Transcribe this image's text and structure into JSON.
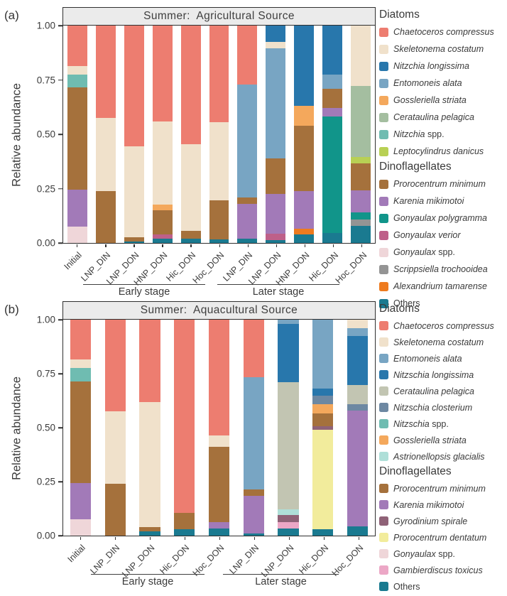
{
  "panel_labels": [
    "(a)",
    "(b)"
  ],
  "chart_data": [
    {
      "type": "bar",
      "stacked": true,
      "title": "Summer:  Agricultural Source",
      "ylabel": "Relative abundance",
      "ylim": [
        0,
        1
      ],
      "grid": false,
      "legend_position": "right",
      "yticks": [
        {
          "v": 1.0,
          "label": "1.00"
        },
        {
          "v": 0.75,
          "label": "0.75"
        },
        {
          "v": 0.5,
          "label": "0.50"
        },
        {
          "v": 0.25,
          "label": "0.25"
        },
        {
          "v": 0.0,
          "label": "0.00"
        }
      ],
      "categories": [
        "Initial",
        "LNP_DIN",
        "LNP_DON",
        "HNP_DON",
        "Hic_DON",
        "Hoc_DON",
        "LNP_DIN",
        "LNP_DON",
        "HNP_DON",
        "Hic_DON",
        "Hoc_DON"
      ],
      "stage_groups": [
        {
          "label": "Early stage",
          "categories": [
            "LNP_DIN",
            "LNP_DON",
            "HNP_DON",
            "Hic_DON",
            "Hoc_DON"
          ]
        },
        {
          "label": "Later stage",
          "categories": [
            "LNP_DIN",
            "LNP_DON",
            "HNP_DON",
            "Hic_DON",
            "Hoc_DON"
          ]
        }
      ],
      "colors": {
        "Chaetoceros compressus": "#ED7D70",
        "Skeletonema costatum": "#F0E1CB",
        "Nitzchia longissima": "#2877AC",
        "Entomoneis alata": "#78A5C3",
        "Gossleriella striata": "#F4A85C",
        "Cerataulina pelagica": "#A4BEA0",
        "Nitzchia spp.": "#6FBCB1",
        "Leptocylindrus danicus": "#B8D054",
        "Prorocentrum minimum": "#A5713C",
        "Karenia mikimotoi": "#A27AB8",
        "Gonyaulax polygramma": "#11958A",
        "Gonyaulax verior": "#BE6089",
        "Gonyaulax spp.": "#EFD6D9",
        "Scrippsiella trochooidea": "#949494",
        "Alexandrium tamarense": "#EE7B1F",
        "Others": "#1A7A90"
      },
      "legend": {
        "sections": [
          {
            "header": "Diatoms",
            "items": [
              "Chaetoceros compressus",
              "Skeletonema costatum",
              "Nitzchia longissima",
              "Entomoneis alata",
              "Gossleriella striata",
              "Cerataulina pelagica",
              "Nitzchia spp.",
              "Leptocylindrus danicus"
            ]
          },
          {
            "header": "Dinoflagellates",
            "items": [
              "Prorocentrum minimum",
              "Karenia mikimotoi",
              "Gonyaulax polygramma",
              "Gonyaulax verior",
              "Gonyaulax spp.",
              "Scrippsiella trochooidea",
              "Alexandrium tamarense",
              "Others"
            ]
          }
        ]
      },
      "bars": [
        {
          "category": "Initial",
          "segments": [
            {
              "species": "Chaetoceros compressus",
              "value": 0.185
            },
            {
              "species": "Skeletonema costatum",
              "value": 0.04
            },
            {
              "species": "Nitzchia spp.",
              "value": 0.06
            },
            {
              "species": "Prorocentrum minimum",
              "value": 0.47
            },
            {
              "species": "Karenia mikimotoi",
              "value": 0.17
            },
            {
              "species": "Gonyaulax spp.",
              "value": 0.075
            }
          ]
        },
        {
          "category": "LNP_DIN",
          "segments": [
            {
              "species": "Chaetoceros compressus",
              "value": 0.425
            },
            {
              "species": "Skeletonema costatum",
              "value": 0.335
            },
            {
              "species": "Prorocentrum minimum",
              "value": 0.24
            }
          ]
        },
        {
          "category": "LNP_DON",
          "segments": [
            {
              "species": "Chaetoceros compressus",
              "value": 0.555
            },
            {
              "species": "Skeletonema costatum",
              "value": 0.42
            },
            {
              "species": "Prorocentrum minimum",
              "value": 0.018
            },
            {
              "species": "Others",
              "value": 0.007
            }
          ]
        },
        {
          "category": "HNP_DON",
          "segments": [
            {
              "species": "Chaetoceros compressus",
              "value": 0.44
            },
            {
              "species": "Skeletonema costatum",
              "value": 0.385
            },
            {
              "species": "Gossleriella striata",
              "value": 0.025
            },
            {
              "species": "Prorocentrum minimum",
              "value": 0.11
            },
            {
              "species": "Gonyaulax verior",
              "value": 0.022
            },
            {
              "species": "Others",
              "value": 0.018
            }
          ]
        },
        {
          "category": "Hic_DON",
          "segments": [
            {
              "species": "Chaetoceros compressus",
              "value": 0.545
            },
            {
              "species": "Skeletonema costatum",
              "value": 0.4
            },
            {
              "species": "Prorocentrum minimum",
              "value": 0.035
            },
            {
              "species": "Others",
              "value": 0.02
            }
          ]
        },
        {
          "category": "Hoc_DON",
          "segments": [
            {
              "species": "Chaetoceros compressus",
              "value": 0.445
            },
            {
              "species": "Skeletonema costatum",
              "value": 0.36
            },
            {
              "species": "Prorocentrum minimum",
              "value": 0.179
            },
            {
              "species": "Others",
              "value": 0.016
            }
          ]
        },
        {
          "category": "LNP_DIN",
          "segments": [
            {
              "species": "Chaetoceros compressus",
              "value": 0.27
            },
            {
              "species": "Entomoneis alata",
              "value": 0.52
            },
            {
              "species": "Prorocentrum minimum",
              "value": 0.031
            },
            {
              "species": "Karenia mikimotoi",
              "value": 0.161
            },
            {
              "species": "Others",
              "value": 0.018
            }
          ]
        },
        {
          "category": "LNP_DON",
          "segments": [
            {
              "species": "Nitzchia longissima",
              "value": 0.074
            },
            {
              "species": "Skeletonema costatum",
              "value": 0.029
            },
            {
              "species": "Entomoneis alata",
              "value": 0.507
            },
            {
              "species": "Prorocentrum minimum",
              "value": 0.163
            },
            {
              "species": "Karenia mikimotoi",
              "value": 0.185
            },
            {
              "species": "Gonyaulax verior",
              "value": 0.03
            },
            {
              "species": "Others",
              "value": 0.012
            }
          ]
        },
        {
          "category": "HNP_DON",
          "segments": [
            {
              "species": "Nitzchia longissima",
              "value": 0.368
            },
            {
              "species": "Gossleriella striata",
              "value": 0.092
            },
            {
              "species": "Prorocentrum minimum",
              "value": 0.3
            },
            {
              "species": "Karenia mikimotoi",
              "value": 0.175
            },
            {
              "species": "Alexandrium tamarense",
              "value": 0.025
            },
            {
              "species": "Others",
              "value": 0.04
            }
          ]
        },
        {
          "category": "Hic_DON",
          "segments": [
            {
              "species": "Nitzchia longissima",
              "value": 0.227
            },
            {
              "species": "Entomoneis alata",
              "value": 0.063
            },
            {
              "species": "Prorocentrum minimum",
              "value": 0.09
            },
            {
              "species": "Karenia mikimotoi",
              "value": 0.04
            },
            {
              "species": "Gonyaulax polygramma",
              "value": 0.535
            },
            {
              "species": "Others",
              "value": 0.045
            }
          ]
        },
        {
          "category": "Hoc_DON",
          "segments": [
            {
              "species": "Skeletonema costatum",
              "value": 0.278
            },
            {
              "species": "Cerataulina pelagica",
              "value": 0.325
            },
            {
              "species": "Leptocylindrus danicus",
              "value": 0.03
            },
            {
              "species": "Prorocentrum minimum",
              "value": 0.125
            },
            {
              "species": "Karenia mikimotoi",
              "value": 0.102
            },
            {
              "species": "Gonyaulax polygramma",
              "value": 0.031
            },
            {
              "species": "Scrippsiella trochooidea",
              "value": 0.032
            },
            {
              "species": "Others",
              "value": 0.077
            }
          ]
        }
      ]
    },
    {
      "type": "bar",
      "stacked": true,
      "title": "Summer:  Aquacultural Source",
      "ylabel": "Relative abundance",
      "ylim": [
        0,
        1
      ],
      "grid": false,
      "legend_position": "right",
      "yticks": [
        {
          "v": 1.0,
          "label": "1.00"
        },
        {
          "v": 0.75,
          "label": "0.75"
        },
        {
          "v": 0.5,
          "label": "0.50"
        },
        {
          "v": 0.25,
          "label": "0.25"
        },
        {
          "v": 0.0,
          "label": "0.00"
        }
      ],
      "categories": [
        "Initial",
        "LNP_DIN",
        "LNP_DON",
        "Hic_DON",
        "Hoc_DON",
        "LNP_DIN",
        "LNP_DON",
        "Hic_DON",
        "Hoc_DON"
      ],
      "stage_groups": [
        {
          "label": "Early stage",
          "categories": [
            "LNP_DIN",
            "LNP_DON",
            "Hic_DON",
            "Hoc_DON"
          ]
        },
        {
          "label": "Later stage",
          "categories": [
            "LNP_DIN",
            "LNP_DON",
            "Hic_DON",
            "Hoc_DON"
          ]
        }
      ],
      "colors": {
        "Chaetoceros compressus": "#ED7D70",
        "Skeletonema costatum": "#F0E1CB",
        "Entomoneis alata": "#78A5C3",
        "Nitzschia longissima": "#2877AC",
        "Cerataulina pelagica": "#C2C5B2",
        "Nitzschia closterium": "#6D88A2",
        "Nitzschia spp.": "#6FBCB1",
        "Gossleriella striata": "#F4A85C",
        "Astrionellopsis glacialis": "#AFDFD8",
        "Prorocentrum minimum": "#A5713C",
        "Karenia mikimotoi": "#A27AB8",
        "Gyrodinium spirale": "#8F6277",
        "Prorocentrum dentatum": "#F2EC9C",
        "Gonyaulax spp.": "#EFD6D9",
        "Gambierdiscus toxicus": "#ECA7C6",
        "Others": "#1A7A90"
      },
      "legend": {
        "sections": [
          {
            "header": "Diatoms",
            "items": [
              "Chaetoceros compressus",
              "Skeletonema costatum",
              "Entomoneis alata",
              "Nitzschia longissima",
              "Cerataulina pelagica",
              "Nitzschia closterium",
              "Nitzschia spp.",
              "Gossleriella striata",
              "Astrionellopsis glacialis"
            ]
          },
          {
            "header": "Dinoflagellates",
            "items": [
              "Prorocentrum minimum",
              "Karenia mikimotoi",
              "Gyrodinium spirale",
              "Prorocentrum dentatum",
              "Gonyaulax spp.",
              "Gambierdiscus toxicus",
              "Others"
            ]
          }
        ]
      },
      "bars": [
        {
          "category": "Initial",
          "segments": [
            {
              "species": "Chaetoceros compressus",
              "value": 0.185
            },
            {
              "species": "Skeletonema costatum",
              "value": 0.04
            },
            {
              "species": "Nitzschia spp.",
              "value": 0.06
            },
            {
              "species": "Prorocentrum minimum",
              "value": 0.47
            },
            {
              "species": "Karenia mikimotoi",
              "value": 0.17
            },
            {
              "species": "Gonyaulax spp.",
              "value": 0.075
            }
          ]
        },
        {
          "category": "LNP_DIN",
          "segments": [
            {
              "species": "Chaetoceros compressus",
              "value": 0.425
            },
            {
              "species": "Skeletonema costatum",
              "value": 0.335
            },
            {
              "species": "Prorocentrum minimum",
              "value": 0.24
            }
          ]
        },
        {
          "category": "LNP_DON",
          "segments": [
            {
              "species": "Chaetoceros compressus",
              "value": 0.38
            },
            {
              "species": "Skeletonema costatum",
              "value": 0.58
            },
            {
              "species": "Prorocentrum minimum",
              "value": 0.021
            },
            {
              "species": "Others",
              "value": 0.019
            }
          ]
        },
        {
          "category": "Hic_DON",
          "segments": [
            {
              "species": "Chaetoceros compressus",
              "value": 0.895
            },
            {
              "species": "Prorocentrum minimum",
              "value": 0.077
            },
            {
              "species": "Others",
              "value": 0.028
            }
          ]
        },
        {
          "category": "Hoc_DON",
          "segments": [
            {
              "species": "Chaetoceros compressus",
              "value": 0.537
            },
            {
              "species": "Skeletonema costatum",
              "value": 0.053
            },
            {
              "species": "Prorocentrum minimum",
              "value": 0.348
            },
            {
              "species": "Karenia mikimotoi",
              "value": 0.03
            },
            {
              "species": "Others",
              "value": 0.032
            }
          ]
        },
        {
          "category": "LNP_DIN",
          "segments": [
            {
              "species": "Chaetoceros compressus",
              "value": 0.267
            },
            {
              "species": "Entomoneis alata",
              "value": 0.52
            },
            {
              "species": "Prorocentrum minimum",
              "value": 0.03
            },
            {
              "species": "Karenia mikimotoi",
              "value": 0.172
            },
            {
              "species": "Others",
              "value": 0.011
            }
          ]
        },
        {
          "category": "LNP_DON",
          "segments": [
            {
              "species": "Entomoneis alata",
              "value": 0.02
            },
            {
              "species": "Nitzschia longissima",
              "value": 0.27
            },
            {
              "species": "Cerataulina pelagica",
              "value": 0.588
            },
            {
              "species": "Astrionellopsis glacialis",
              "value": 0.027
            },
            {
              "species": "Gyrodinium spirale",
              "value": 0.032
            },
            {
              "species": "Gambierdiscus toxicus",
              "value": 0.031
            },
            {
              "species": "Others",
              "value": 0.032
            }
          ]
        },
        {
          "category": "Hic_DON",
          "segments": [
            {
              "species": "Entomoneis alata",
              "value": 0.318
            },
            {
              "species": "Nitzschia longissima",
              "value": 0.035
            },
            {
              "species": "Nitzschia closterium",
              "value": 0.04
            },
            {
              "species": "Gossleriella striata",
              "value": 0.04
            },
            {
              "species": "Prorocentrum minimum",
              "value": 0.061
            },
            {
              "species": "Gyrodinium spirale",
              "value": 0.015
            },
            {
              "species": "Prorocentrum dentatum",
              "value": 0.463
            },
            {
              "species": "Others",
              "value": 0.028
            }
          ]
        },
        {
          "category": "Hoc_DON",
          "segments": [
            {
              "species": "Skeletonema costatum",
              "value": 0.038
            },
            {
              "species": "Entomoneis alata",
              "value": 0.037
            },
            {
              "species": "Nitzschia longissima",
              "value": 0.227
            },
            {
              "species": "Cerataulina pelagica",
              "value": 0.091
            },
            {
              "species": "Nitzschia closterium",
              "value": 0.027
            },
            {
              "species": "Karenia mikimotoi",
              "value": 0.539
            },
            {
              "species": "Others",
              "value": 0.041
            }
          ]
        }
      ]
    }
  ]
}
